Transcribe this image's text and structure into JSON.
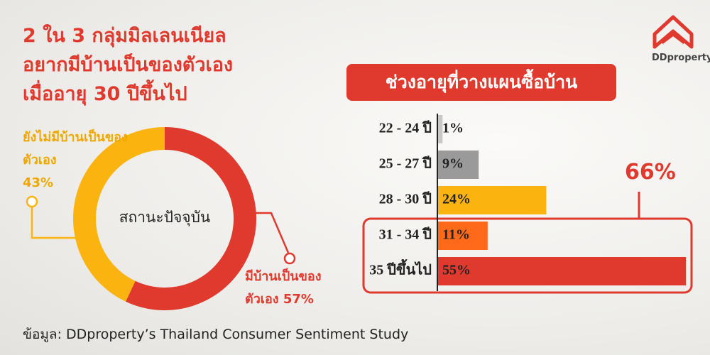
{
  "chart_data": [
    {
      "type": "pie",
      "title": "2 ใน 3 กลุ่มมิลเลนเนียล\nอยากมีบ้านเป็นของตัวเอง\nเมื่ออายุ 30 ปีขึ้นไป",
      "center_label": "สถานะปัจจุบัน",
      "categories": [
        "ยังไม่มีบ้านเป็นของตัวเอง",
        "มีบ้านเป็นของตัวเอง"
      ],
      "values": [
        43,
        57
      ],
      "value_labels": [
        "43%",
        "57%"
      ],
      "colors": [
        "#fbb40f",
        "#e03a2f"
      ]
    },
    {
      "type": "bar",
      "title": "ช่วงอายุที่วางแผนซื้อบ้าน",
      "categories": [
        "22 - 24 ปี",
        "25 - 27 ปี",
        "28 - 30 ปี",
        "31 - 34 ปี",
        "35 ปีขึ้นไป"
      ],
      "values": [
        1,
        9,
        24,
        11,
        55
      ],
      "value_labels": [
        "1%",
        "9%",
        "24%",
        "11%",
        "55%"
      ],
      "colors": [
        "#c8c8c8",
        "#9a9a9a",
        "#fbb40f",
        "#ff6a1a",
        "#e03a2f"
      ],
      "annotation": "66%"
    }
  ],
  "source": "ข้อมูล: DDproperty’s Thailand Consumer Sentiment Study",
  "logo": "DDproperty"
}
